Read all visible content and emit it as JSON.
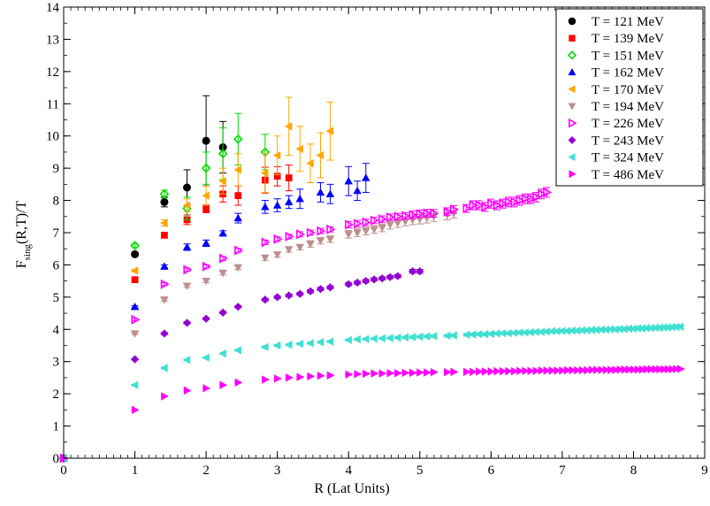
{
  "chart_data": {
    "type": "scatter",
    "title": "",
    "xlabel": "R (Lat Units)",
    "ylabel_main": "F",
    "ylabel_sub": "sing",
    "ylabel_rest": "(R,T)/T",
    "xlim": [
      0,
      9
    ],
    "ylim": [
      0,
      14
    ],
    "x_ticks": [
      0,
      1,
      2,
      3,
      4,
      5,
      6,
      7,
      8,
      9
    ],
    "y_ticks": [
      0,
      1,
      2,
      3,
      4,
      5,
      6,
      7,
      8,
      9,
      10,
      11,
      12,
      13,
      14
    ],
    "grid": false,
    "legend_position": "top-right",
    "series": [
      {
        "name": "T = 121 MeV",
        "color": "#000000",
        "marker": "circle",
        "x": [
          0,
          1.0,
          1.414,
          1.732,
          2.0,
          2.236
        ],
        "y": [
          0,
          6.33,
          7.95,
          8.4,
          9.85,
          9.65
        ],
        "err": [
          0,
          0.06,
          0.15,
          0.55,
          1.4,
          0.8
        ]
      },
      {
        "name": "T = 139 MeV",
        "color": "#ff0000",
        "marker": "square",
        "x": [
          0,
          1.0,
          1.414,
          1.732,
          2.0,
          2.236,
          2.449,
          2.828,
          3.0,
          3.162
        ],
        "y": [
          0,
          5.54,
          6.92,
          7.4,
          7.74,
          8.2,
          8.15,
          8.63,
          8.75,
          8.7
        ],
        "err": [
          0,
          0.04,
          0.08,
          0.15,
          0.12,
          0.25,
          0.3,
          0.4,
          0.3,
          0.4
        ]
      },
      {
        "name": "T = 151 MeV",
        "color": "#00dd00",
        "marker": "diamond-open",
        "x": [
          0,
          1.0,
          1.414,
          1.732,
          2.0,
          2.236,
          2.449,
          2.828
        ],
        "y": [
          0,
          6.6,
          8.2,
          7.75,
          9.0,
          9.45,
          9.9,
          9.5
        ],
        "err": [
          0,
          0.05,
          0.12,
          0.35,
          0.5,
          0.8,
          0.8,
          0.55
        ]
      },
      {
        "name": "T = 162 MeV",
        "color": "#0000ff",
        "marker": "triangle-up",
        "x": [
          0,
          1.0,
          1.414,
          1.732,
          2.0,
          2.236,
          2.449,
          2.828,
          3.0,
          3.162,
          3.317,
          3.606,
          3.742,
          4.0,
          4.123,
          4.243
        ],
        "y": [
          0,
          4.7,
          5.95,
          6.55,
          6.67,
          6.98,
          7.45,
          7.8,
          7.85,
          7.95,
          8.05,
          8.25,
          8.2,
          8.6,
          8.3,
          8.7
        ],
        "err": [
          0,
          0.03,
          0.05,
          0.1,
          0.1,
          0.08,
          0.15,
          0.2,
          0.2,
          0.2,
          0.3,
          0.3,
          0.3,
          0.45,
          0.3,
          0.45
        ]
      },
      {
        "name": "T = 170 MeV",
        "color": "#ffa500",
        "marker": "triangle-left",
        "x": [
          0,
          1.0,
          1.414,
          1.732,
          2.0,
          2.236,
          2.449,
          2.828,
          3.0,
          3.162,
          3.317,
          3.464,
          3.606,
          3.742
        ],
        "y": [
          0,
          5.82,
          7.3,
          7.85,
          8.15,
          8.6,
          8.95,
          8.85,
          9.4,
          10.3,
          9.6,
          9.15,
          9.4,
          10.15
        ],
        "err": [
          0,
          0.04,
          0.1,
          0.2,
          0.3,
          0.4,
          0.5,
          0.6,
          0.6,
          0.9,
          0.7,
          0.6,
          0.7,
          0.9
        ]
      },
      {
        "name": "T = 194 MeV",
        "color": "#bc8f8f",
        "marker": "triangle-down",
        "x": [
          0,
          1.0,
          1.414,
          1.732,
          2.0,
          2.236,
          2.449,
          2.828,
          3.0,
          3.162,
          3.317,
          3.464,
          3.606,
          3.742,
          4.0,
          4.123,
          4.243,
          4.359,
          4.472,
          4.583,
          4.69,
          4.796,
          4.899,
          5.0,
          5.099,
          5.196,
          5.385,
          5.477
        ],
        "y": [
          0,
          3.87,
          4.92,
          5.35,
          5.5,
          5.75,
          5.92,
          6.22,
          6.32,
          6.48,
          6.55,
          6.65,
          6.75,
          6.8,
          6.95,
          7.0,
          7.05,
          7.1,
          7.15,
          7.25,
          7.3,
          7.35,
          7.4,
          7.42,
          7.45,
          7.5,
          7.55,
          7.6
        ],
        "err": [
          0,
          0.03,
          0.05,
          0.05,
          0.05,
          0.06,
          0.06,
          0.08,
          0.08,
          0.08,
          0.08,
          0.1,
          0.1,
          0.1,
          0.12,
          0.12,
          0.12,
          0.12,
          0.12,
          0.14,
          0.14,
          0.14,
          0.15,
          0.15,
          0.15,
          0.15,
          0.15,
          0.15
        ]
      },
      {
        "name": "T = 226 MeV",
        "color": "#ff00ff",
        "marker": "triangle-right-open",
        "x": [
          0,
          1.0,
          1.414,
          1.732,
          2.0,
          2.236,
          2.449,
          2.828,
          3.0,
          3.162,
          3.317,
          3.464,
          3.606,
          3.742,
          4.0,
          4.123,
          4.243,
          4.359,
          4.472,
          4.583,
          4.69,
          4.796,
          4.899,
          5.0,
          5.099,
          5.196,
          5.385,
          5.477,
          5.657,
          5.745,
          5.831,
          5.916,
          6.0,
          6.083,
          6.164,
          6.245,
          6.325,
          6.403,
          6.481,
          6.557,
          6.633,
          6.708,
          6.782
        ],
        "y": [
          0,
          4.3,
          5.4,
          5.85,
          5.95,
          6.2,
          6.45,
          6.7,
          6.8,
          6.88,
          6.95,
          7.0,
          7.05,
          7.1,
          7.25,
          7.28,
          7.32,
          7.38,
          7.42,
          7.48,
          7.5,
          7.52,
          7.55,
          7.58,
          7.6,
          7.6,
          7.65,
          7.72,
          7.75,
          7.85,
          7.85,
          7.8,
          7.9,
          7.85,
          7.9,
          7.95,
          7.95,
          8.0,
          8.05,
          8.05,
          8.1,
          8.2,
          8.25
        ],
        "err": [
          0,
          0.03,
          0.04,
          0.05,
          0.05,
          0.06,
          0.06,
          0.07,
          0.07,
          0.07,
          0.08,
          0.08,
          0.08,
          0.08,
          0.1,
          0.1,
          0.1,
          0.1,
          0.1,
          0.1,
          0.1,
          0.1,
          0.12,
          0.12,
          0.12,
          0.12,
          0.12,
          0.12,
          0.12,
          0.14,
          0.14,
          0.14,
          0.14,
          0.14,
          0.14,
          0.15,
          0.15,
          0.15,
          0.15,
          0.15,
          0.15,
          0.15,
          0.15
        ]
      },
      {
        "name": "T = 243 MeV",
        "color": "#9400d3",
        "marker": "diamond",
        "x": [
          0,
          1.0,
          1.414,
          1.732,
          2.0,
          2.236,
          2.449,
          2.828,
          3.0,
          3.162,
          3.317,
          3.464,
          3.606,
          3.742,
          4.0,
          4.123,
          4.243,
          4.359,
          4.472,
          4.583,
          4.69,
          4.899,
          5.0
        ],
        "y": [
          0,
          3.07,
          3.87,
          4.2,
          4.33,
          4.52,
          4.7,
          4.92,
          5.0,
          5.05,
          5.1,
          5.18,
          5.25,
          5.3,
          5.4,
          5.45,
          5.5,
          5.55,
          5.58,
          5.62,
          5.65,
          5.8,
          5.8
        ],
        "err": [
          0,
          0.02,
          0.03,
          0.03,
          0.03,
          0.03,
          0.03,
          0.04,
          0.04,
          0.04,
          0.04,
          0.05,
          0.05,
          0.05,
          0.05,
          0.05,
          0.05,
          0.05,
          0.05,
          0.05,
          0.05,
          0.06,
          0.06
        ]
      },
      {
        "name": "T = 324 MeV",
        "color": "#40e0d0",
        "marker": "triangle-left",
        "x": [
          0,
          1.0,
          1.414,
          1.732,
          2.0,
          2.236,
          2.449,
          2.828,
          3.0,
          3.162,
          3.317,
          3.464,
          3.606,
          3.742,
          4.0,
          4.123,
          4.243,
          4.359,
          4.472,
          4.583,
          4.69,
          4.796,
          4.899,
          5.0,
          5.099,
          5.196,
          5.385,
          5.477,
          5.657,
          5.745,
          5.831,
          5.916,
          6.0,
          6.083,
          6.164,
          6.245,
          6.325,
          6.403,
          6.481,
          6.557,
          6.633,
          6.708,
          6.782,
          6.856,
          6.928,
          7.0,
          7.071,
          7.141,
          7.211,
          7.28,
          7.348,
          7.416,
          7.483,
          7.55,
          7.616,
          7.681,
          7.746,
          7.81,
          7.874,
          7.937,
          8.0,
          8.062,
          8.124,
          8.185,
          8.246,
          8.307,
          8.367,
          8.426,
          8.485,
          8.544,
          8.602,
          8.66
        ],
        "y": [
          0,
          2.27,
          2.8,
          3.05,
          3.12,
          3.25,
          3.35,
          3.45,
          3.5,
          3.52,
          3.55,
          3.57,
          3.6,
          3.62,
          3.67,
          3.69,
          3.7,
          3.71,
          3.72,
          3.73,
          3.74,
          3.75,
          3.76,
          3.77,
          3.78,
          3.79,
          3.8,
          3.81,
          3.83,
          3.84,
          3.85,
          3.85,
          3.86,
          3.87,
          3.88,
          3.88,
          3.89,
          3.9,
          3.9,
          3.91,
          3.92,
          3.92,
          3.93,
          3.94,
          3.94,
          3.95,
          3.95,
          3.96,
          3.96,
          3.97,
          3.97,
          3.98,
          3.98,
          3.99,
          3.99,
          4.0,
          4.0,
          4.01,
          4.01,
          4.02,
          4.02,
          4.03,
          4.03,
          4.04,
          4.04,
          4.05,
          4.05,
          4.06,
          4.06,
          4.07,
          4.07,
          4.08
        ],
        "err": [
          0,
          0.02,
          0.02,
          0.02,
          0.02,
          0.02,
          0.03,
          0.03,
          0.03,
          0.03,
          0.03,
          0.03,
          0.03,
          0.03,
          0.03,
          0.03,
          0.03,
          0.03,
          0.03,
          0.03,
          0.03,
          0.03,
          0.04,
          0.04,
          0.04,
          0.04,
          0.04,
          0.04,
          0.04,
          0.04,
          0.04,
          0.04,
          0.04,
          0.04,
          0.04,
          0.04,
          0.04,
          0.04,
          0.04,
          0.04,
          0.04,
          0.04,
          0.04,
          0.04,
          0.04,
          0.04,
          0.04,
          0.04,
          0.04,
          0.04,
          0.04,
          0.04,
          0.04,
          0.04,
          0.04,
          0.04,
          0.04,
          0.04,
          0.04,
          0.04,
          0.04,
          0.04,
          0.04,
          0.04,
          0.04,
          0.04,
          0.04,
          0.04,
          0.04,
          0.04,
          0.04,
          0.04
        ]
      },
      {
        "name": "T = 486 MeV",
        "color": "#ff00ff",
        "marker": "triangle-right",
        "x": [
          0,
          1.0,
          1.414,
          1.732,
          2.0,
          2.236,
          2.449,
          2.828,
          3.0,
          3.162,
          3.317,
          3.464,
          3.606,
          3.742,
          4.0,
          4.123,
          4.243,
          4.359,
          4.472,
          4.583,
          4.69,
          4.796,
          4.899,
          5.0,
          5.099,
          5.196,
          5.385,
          5.477,
          5.657,
          5.745,
          5.831,
          5.916,
          6.0,
          6.083,
          6.164,
          6.245,
          6.325,
          6.403,
          6.481,
          6.557,
          6.633,
          6.708,
          6.782,
          6.856,
          6.928,
          7.0,
          7.071,
          7.141,
          7.211,
          7.28,
          7.348,
          7.416,
          7.483,
          7.55,
          7.616,
          7.681,
          7.746,
          7.81,
          7.874,
          7.937,
          8.0,
          8.062,
          8.124,
          8.185,
          8.246,
          8.307,
          8.367,
          8.426,
          8.485,
          8.544,
          8.602,
          8.66
        ],
        "y": [
          0,
          1.5,
          1.92,
          2.1,
          2.17,
          2.27,
          2.35,
          2.44,
          2.47,
          2.5,
          2.52,
          2.54,
          2.56,
          2.57,
          2.6,
          2.61,
          2.62,
          2.63,
          2.63,
          2.64,
          2.64,
          2.65,
          2.65,
          2.66,
          2.66,
          2.67,
          2.67,
          2.68,
          2.68,
          2.68,
          2.69,
          2.69,
          2.69,
          2.7,
          2.7,
          2.7,
          2.7,
          2.71,
          2.71,
          2.71,
          2.71,
          2.72,
          2.72,
          2.72,
          2.72,
          2.72,
          2.73,
          2.73,
          2.73,
          2.73,
          2.73,
          2.74,
          2.74,
          2.74,
          2.74,
          2.74,
          2.74,
          2.75,
          2.75,
          2.75,
          2.75,
          2.75,
          2.75,
          2.76,
          2.76,
          2.76,
          2.76,
          2.76,
          2.76,
          2.76,
          2.77,
          2.77
        ],
        "err": [
          0,
          0.01,
          0.01,
          0.01,
          0.01,
          0.01,
          0.01,
          0.02,
          0.02,
          0.02,
          0.02,
          0.02,
          0.02,
          0.02,
          0.02,
          0.02,
          0.02,
          0.02,
          0.02,
          0.02,
          0.02,
          0.02,
          0.02,
          0.02,
          0.02,
          0.02,
          0.02,
          0.02,
          0.02,
          0.02,
          0.02,
          0.02,
          0.02,
          0.02,
          0.02,
          0.02,
          0.02,
          0.02,
          0.02,
          0.02,
          0.02,
          0.02,
          0.02,
          0.02,
          0.02,
          0.02,
          0.02,
          0.02,
          0.02,
          0.02,
          0.02,
          0.02,
          0.02,
          0.02,
          0.02,
          0.02,
          0.02,
          0.02,
          0.02,
          0.02,
          0.02,
          0.02,
          0.02,
          0.02,
          0.02,
          0.02,
          0.02,
          0.02,
          0.02,
          0.02,
          0.02,
          0.02
        ]
      }
    ]
  }
}
